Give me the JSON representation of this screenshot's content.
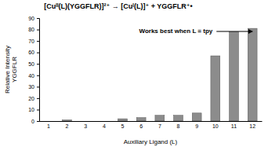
{
  "chart_data": {
    "type": "bar",
    "title": "[Cuᴵᴵ(L)(YGGFLR)]²⁺ → [Cuᴵ(L)]⁺ + YGGFLR⁺•",
    "x_label": "Auxiliary Ligand (L)",
    "y_label": [
      "Relative Intensity",
      "YGGFLR"
    ],
    "annotation": "Works best when L = tpy",
    "categories": [
      "1",
      "2",
      "3",
      "4",
      "5",
      "6",
      "7",
      "8",
      "9",
      "10",
      "11",
      "12"
    ],
    "values": [
      0,
      1,
      0,
      0,
      2,
      3,
      5,
      5,
      7,
      57,
      78,
      81
    ],
    "color": "#8c8c8c",
    "ylim": [
      0,
      90
    ],
    "yticks": [
      0,
      10,
      20,
      30,
      40,
      50,
      60,
      70,
      80,
      90
    ],
    "grid": false
  }
}
